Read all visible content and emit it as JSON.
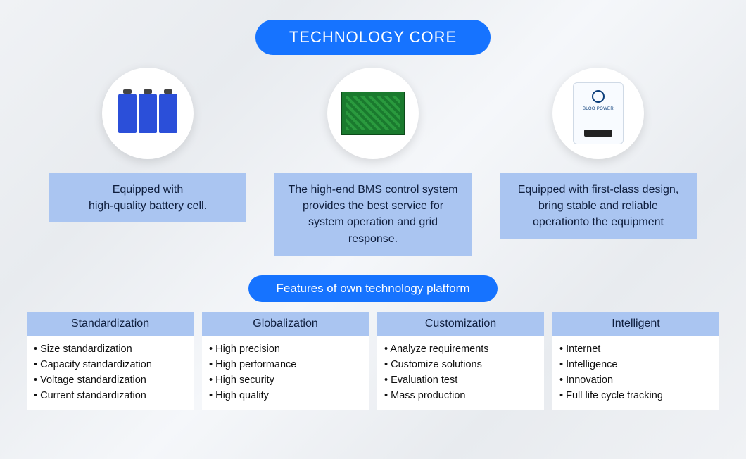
{
  "title": "TECHNOLOGY CORE",
  "title_bg": "#1673ff",
  "title_color": "#ffffff",
  "desc_box_bg": "#aac5f1",
  "desc_box_color": "#0f1e3d",
  "tech_items": [
    {
      "icon": "battery-cells",
      "description": "Equipped with\nhigh-quality battery cell."
    },
    {
      "icon": "pcb-board",
      "description": "The high-end BMS control system provides the best service for system operation and grid response."
    },
    {
      "icon": "power-device",
      "brand_text": "BLOO POWER",
      "description": "Equipped with first-class design, bring stable and reliable operationto the equipment"
    }
  ],
  "subtitle": "Features of own technology platform",
  "feature_header_bg": "#aac5f1",
  "feature_body_bg": "#ffffff",
  "feature_columns": [
    {
      "header": "Standardization",
      "items": [
        "Size standardization",
        "Capacity standardization",
        "Voltage standardization",
        "Current standardization"
      ]
    },
    {
      "header": "Globalization",
      "items": [
        "High precision",
        "High performance",
        "High security",
        "High quality"
      ]
    },
    {
      "header": "Customization",
      "items": [
        "Analyze requirements",
        "Customize solutions",
        "Evaluation test",
        "Mass production"
      ]
    },
    {
      "header": "Intelligent",
      "items": [
        "Internet",
        "Intelligence",
        "Innovation",
        "Full life cycle tracking"
      ]
    }
  ]
}
